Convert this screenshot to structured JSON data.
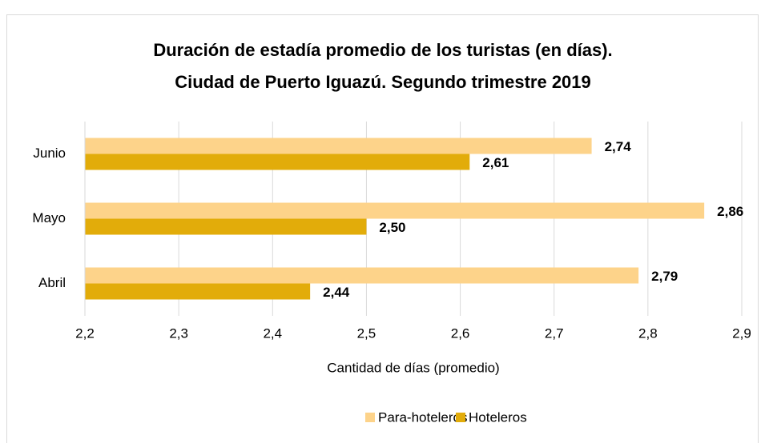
{
  "chart_data": {
    "type": "barh",
    "title": "Duración de estadía promedio de los turistas (en días).",
    "subtitle": "Ciudad de Puerto Iguazú. Segundo trimestre 2019",
    "xlabel": "Cantidad de días (promedio)",
    "categories": [
      "Junio",
      "Mayo",
      "Abril"
    ],
    "series": [
      {
        "name": "Para-hoteleros",
        "color": "#fdd38a",
        "values": [
          2.74,
          2.86,
          2.79
        ],
        "value_labels": [
          "2,74",
          "2,86",
          "2,79"
        ]
      },
      {
        "name": "Hoteleros",
        "color": "#e2ac0a",
        "values": [
          2.61,
          2.5,
          2.44
        ],
        "value_labels": [
          "2,61",
          "2,50",
          "2,44"
        ]
      }
    ],
    "xlim": [
      2.2,
      2.9
    ],
    "xticks": [
      {
        "value": 2.2,
        "label": "2,2"
      },
      {
        "value": 2.3,
        "label": "2,3"
      },
      {
        "value": 2.4,
        "label": "2,4"
      },
      {
        "value": 2.5,
        "label": "2,5"
      },
      {
        "value": 2.6,
        "label": "2,6"
      },
      {
        "value": 2.7,
        "label": "2,7"
      },
      {
        "value": 2.8,
        "label": "2,8"
      },
      {
        "value": 2.9,
        "label": "2,9"
      }
    ],
    "grid": true,
    "legend": "bottom"
  }
}
